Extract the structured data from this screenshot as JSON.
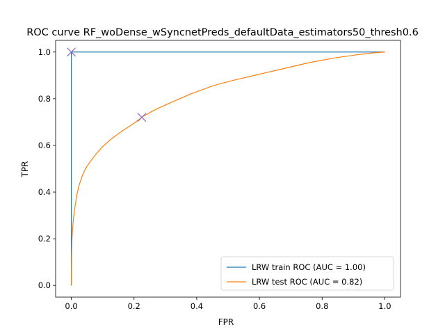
{
  "chart_data": {
    "type": "line",
    "title": "ROC curve RF_woDense_wSyncnetPreds_defaultData_estimators50_thresh0.6",
    "xlabel": "FPR",
    "ylabel": "TPR",
    "xlim": [
      -0.05,
      1.05
    ],
    "ylim": [
      -0.05,
      1.05
    ],
    "xticks": [
      0.0,
      0.2,
      0.4,
      0.6,
      0.8,
      1.0
    ],
    "xtick_labels": [
      "0.0",
      "0.2",
      "0.4",
      "0.6",
      "0.8",
      "1.0"
    ],
    "yticks": [
      0.0,
      0.2,
      0.4,
      0.6,
      0.8,
      1.0
    ],
    "ytick_labels": [
      "0.0",
      "0.2",
      "0.4",
      "0.6",
      "0.8",
      "1.0"
    ],
    "grid": false,
    "legend_position": "lower-right",
    "series": [
      {
        "name": "LRW train ROC (AUC = 1.00)",
        "color": "#1f77b4",
        "x": [
          0.0,
          0.0,
          0.0,
          1.0
        ],
        "y": [
          0.0,
          0.23,
          1.0,
          1.0
        ]
      },
      {
        "name": "LRW test ROC (AUC = 0.82)",
        "color": "#ff7f0e",
        "x": [
          0.0,
          0.001,
          0.002,
          0.004,
          0.007,
          0.012,
          0.018,
          0.025,
          0.035,
          0.045,
          0.06,
          0.08,
          0.1,
          0.13,
          0.16,
          0.2,
          0.23,
          0.27,
          0.32,
          0.38,
          0.45,
          0.52,
          0.6,
          0.68,
          0.76,
          0.84,
          0.92,
          0.97,
          1.0
        ],
        "y": [
          0.0,
          0.12,
          0.19,
          0.24,
          0.29,
          0.34,
          0.39,
          0.43,
          0.47,
          0.5,
          0.53,
          0.565,
          0.595,
          0.63,
          0.66,
          0.695,
          0.725,
          0.755,
          0.785,
          0.82,
          0.855,
          0.88,
          0.905,
          0.93,
          0.955,
          0.975,
          0.99,
          0.997,
          1.0
        ]
      }
    ],
    "markers": [
      {
        "x": 0.0,
        "y": 1.0,
        "symbol": "x",
        "color": "#9467bd"
      },
      {
        "x": 0.225,
        "y": 0.72,
        "symbol": "x",
        "color": "#9467bd"
      }
    ]
  }
}
